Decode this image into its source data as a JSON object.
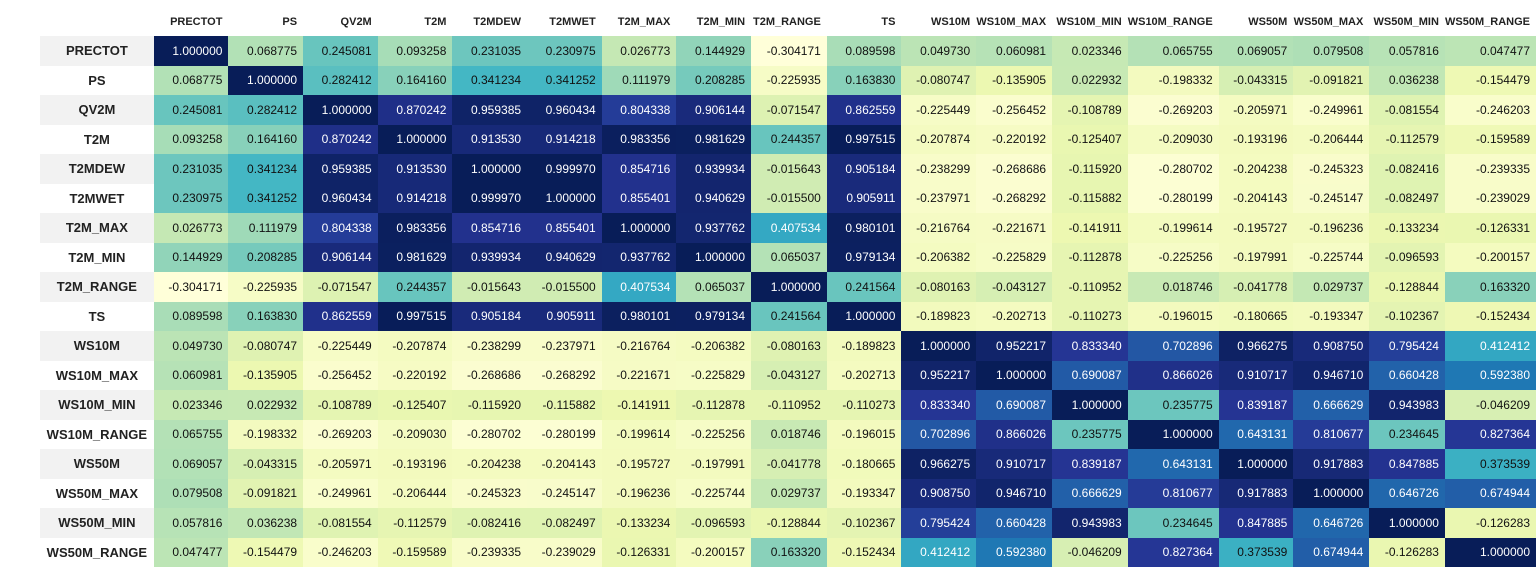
{
  "chart_data": {
    "type": "heatmap",
    "colormap": "YlGnBu",
    "value_range": [
      -0.304171,
      1.0
    ],
    "labels": [
      "PRECTOT",
      "PS",
      "QV2M",
      "T2M",
      "T2MDEW",
      "T2MWET",
      "T2M_MAX",
      "T2M_MIN",
      "T2M_RANGE",
      "TS",
      "WS10M",
      "WS10M_MAX",
      "WS10M_MIN",
      "WS10M_RANGE",
      "WS50M",
      "WS50M_MAX",
      "WS50M_MIN",
      "WS50M_RANGE"
    ],
    "values": [
      [
        "1.000000",
        "0.068775",
        "0.245081",
        "0.093258",
        "0.231035",
        "0.230975",
        "0.026773",
        "0.144929",
        "-0.304171",
        "0.089598",
        "0.049730",
        "0.060981",
        "0.023346",
        "0.065755",
        "0.069057",
        "0.079508",
        "0.057816",
        "0.047477"
      ],
      [
        "0.068775",
        "1.000000",
        "0.282412",
        "0.164160",
        "0.341234",
        "0.341252",
        "0.111979",
        "0.208285",
        "-0.225935",
        "0.163830",
        "-0.080747",
        "-0.135905",
        "0.022932",
        "-0.198332",
        "-0.043315",
        "-0.091821",
        "0.036238",
        "-0.154479"
      ],
      [
        "0.245081",
        "0.282412",
        "1.000000",
        "0.870242",
        "0.959385",
        "0.960434",
        "0.804338",
        "0.906144",
        "-0.071547",
        "0.862559",
        "-0.225449",
        "-0.256452",
        "-0.108789",
        "-0.269203",
        "-0.205971",
        "-0.249961",
        "-0.081554",
        "-0.246203"
      ],
      [
        "0.093258",
        "0.164160",
        "0.870242",
        "1.000000",
        "0.913530",
        "0.914218",
        "0.983356",
        "0.981629",
        "0.244357",
        "0.997515",
        "-0.207874",
        "-0.220192",
        "-0.125407",
        "-0.209030",
        "-0.193196",
        "-0.206444",
        "-0.112579",
        "-0.159589"
      ],
      [
        "0.231035",
        "0.341234",
        "0.959385",
        "0.913530",
        "1.000000",
        "0.999970",
        "0.854716",
        "0.939934",
        "-0.015643",
        "0.905184",
        "-0.238299",
        "-0.268686",
        "-0.115920",
        "-0.280702",
        "-0.204238",
        "-0.245323",
        "-0.082416",
        "-0.239335"
      ],
      [
        "0.230975",
        "0.341252",
        "0.960434",
        "0.914218",
        "0.999970",
        "1.000000",
        "0.855401",
        "0.940629",
        "-0.015500",
        "0.905911",
        "-0.237971",
        "-0.268292",
        "-0.115882",
        "-0.280199",
        "-0.204143",
        "-0.245147",
        "-0.082497",
        "-0.239029"
      ],
      [
        "0.026773",
        "0.111979",
        "0.804338",
        "0.983356",
        "0.854716",
        "0.855401",
        "1.000000",
        "0.937762",
        "0.407534",
        "0.980101",
        "-0.216764",
        "-0.221671",
        "-0.141911",
        "-0.199614",
        "-0.195727",
        "-0.196236",
        "-0.133234",
        "-0.126331"
      ],
      [
        "0.144929",
        "0.208285",
        "0.906144",
        "0.981629",
        "0.939934",
        "0.940629",
        "0.937762",
        "1.000000",
        "0.065037",
        "0.979134",
        "-0.206382",
        "-0.225829",
        "-0.112878",
        "-0.225256",
        "-0.197991",
        "-0.225744",
        "-0.096593",
        "-0.200157"
      ],
      [
        "-0.304171",
        "-0.225935",
        "-0.071547",
        "0.244357",
        "-0.015643",
        "-0.015500",
        "0.407534",
        "0.065037",
        "1.000000",
        "0.241564",
        "-0.080163",
        "-0.043127",
        "-0.110952",
        "0.018746",
        "-0.041778",
        "0.029737",
        "-0.128844",
        "0.163320"
      ],
      [
        "0.089598",
        "0.163830",
        "0.862559",
        "0.997515",
        "0.905184",
        "0.905911",
        "0.980101",
        "0.979134",
        "0.241564",
        "1.000000",
        "-0.189823",
        "-0.202713",
        "-0.110273",
        "-0.196015",
        "-0.180665",
        "-0.193347",
        "-0.102367",
        "-0.152434"
      ],
      [
        "0.049730",
        "-0.080747",
        "-0.225449",
        "-0.207874",
        "-0.238299",
        "-0.237971",
        "-0.216764",
        "-0.206382",
        "-0.080163",
        "-0.189823",
        "1.000000",
        "0.952217",
        "0.833340",
        "0.702896",
        "0.966275",
        "0.908750",
        "0.795424",
        "0.412412"
      ],
      [
        "0.060981",
        "-0.135905",
        "-0.256452",
        "-0.220192",
        "-0.268686",
        "-0.268292",
        "-0.221671",
        "-0.225829",
        "-0.043127",
        "-0.202713",
        "0.952217",
        "1.000000",
        "0.690087",
        "0.866026",
        "0.910717",
        "0.946710",
        "0.660428",
        "0.592380"
      ],
      [
        "0.023346",
        "0.022932",
        "-0.108789",
        "-0.125407",
        "-0.115920",
        "-0.115882",
        "-0.141911",
        "-0.112878",
        "-0.110952",
        "-0.110273",
        "0.833340",
        "0.690087",
        "1.000000",
        "0.235775",
        "0.839187",
        "0.666629",
        "0.943983",
        "-0.046209"
      ],
      [
        "0.065755",
        "-0.198332",
        "-0.269203",
        "-0.209030",
        "-0.280702",
        "-0.280199",
        "-0.199614",
        "-0.225256",
        "0.018746",
        "-0.196015",
        "0.702896",
        "0.866026",
        "0.235775",
        "1.000000",
        "0.643131",
        "0.810677",
        "0.234645",
        "0.827364"
      ],
      [
        "0.069057",
        "-0.043315",
        "-0.205971",
        "-0.193196",
        "-0.204238",
        "-0.204143",
        "-0.195727",
        "-0.197991",
        "-0.041778",
        "-0.180665",
        "0.966275",
        "0.910717",
        "0.839187",
        "0.643131",
        "1.000000",
        "0.917883",
        "0.847885",
        "0.373539"
      ],
      [
        "0.079508",
        "-0.091821",
        "-0.249961",
        "-0.206444",
        "-0.245323",
        "-0.245147",
        "-0.196236",
        "-0.225744",
        "0.029737",
        "-0.193347",
        "0.908750",
        "0.946710",
        "0.666629",
        "0.810677",
        "0.917883",
        "1.000000",
        "0.646726",
        "0.674944"
      ],
      [
        "0.057816",
        "0.036238",
        "-0.081554",
        "-0.112579",
        "-0.082416",
        "-0.082497",
        "-0.133234",
        "-0.096593",
        "-0.128844",
        "-0.102367",
        "0.795424",
        "0.660428",
        "0.943983",
        "0.234645",
        "0.847885",
        "0.646726",
        "1.000000",
        "-0.126283"
      ],
      [
        "0.047477",
        "-0.154479",
        "-0.246203",
        "-0.159589",
        "-0.239335",
        "-0.239029",
        "-0.126331",
        "-0.200157",
        "0.163320",
        "-0.152434",
        "0.412412",
        "0.592380",
        "-0.046209",
        "0.827364",
        "0.373539",
        "0.674944",
        "-0.126283",
        "1.000000"
      ]
    ]
  }
}
